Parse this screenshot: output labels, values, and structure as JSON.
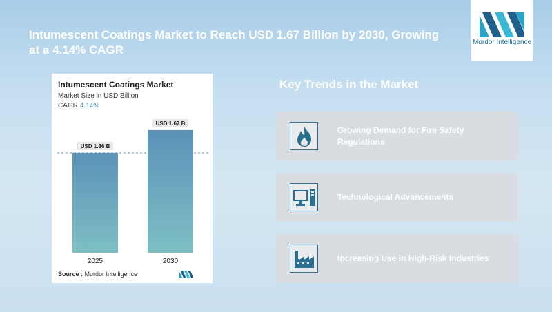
{
  "headline": "Intumescent Coatings Market to Reach USD 1.67 Billion by 2030, Growing at a 4.14% CAGR",
  "logo": {
    "name": "Mordor Intelligence",
    "icon": "mordor-logo-icon"
  },
  "chart_card": {
    "title": "Intumescent Coatings Market",
    "subtitle": "Market Size in USD Billion",
    "cagr_label": "CAGR",
    "cagr_value": "4.14%",
    "source_label": "Source :",
    "source_value": "Mordor Intelligence"
  },
  "chart_data": {
    "type": "bar",
    "title": "Intumescent Coatings Market",
    "ylabel": "Market Size in USD Billion",
    "categories": [
      "2025",
      "2030"
    ],
    "values": [
      1.36,
      1.67
    ],
    "data_labels": [
      "USD 1.36 B",
      "USD 1.67 B"
    ],
    "ylim": [
      0,
      1.8
    ],
    "grid": false,
    "reference_line": 1.36,
    "colors": {
      "bar_top": "#5b92b8",
      "bar_bottom": "#7ebfc4",
      "ref_line": "#5b92b8"
    }
  },
  "trends": {
    "title": "Key Trends in the Market",
    "items": [
      {
        "label": "Growing Demand for Fire Safety Regulations",
        "icon": "flame-icon"
      },
      {
        "label": "Technological Advancements",
        "icon": "computer-icon"
      },
      {
        "label": "Increasing Use in High-Risk Industries",
        "icon": "factory-icon"
      }
    ]
  },
  "colors": {
    "accent": "#2b6f8f",
    "card_bg": "#d9dce0",
    "headline": "#ffffff"
  }
}
